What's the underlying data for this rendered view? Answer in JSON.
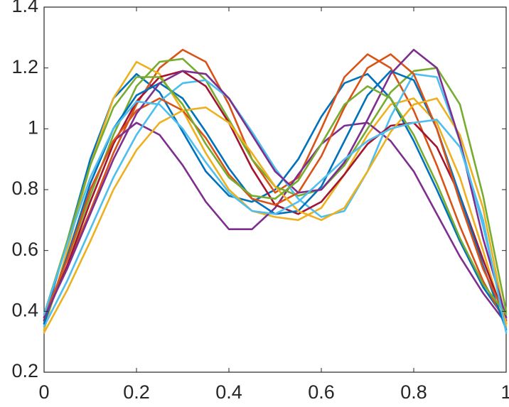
{
  "chart_data": {
    "type": "line",
    "x": [
      0,
      0.05,
      0.1,
      0.15,
      0.2,
      0.25,
      0.3,
      0.35,
      0.4,
      0.45,
      0.5,
      0.55,
      0.6,
      0.65,
      0.7,
      0.75,
      0.8,
      0.85,
      0.9,
      0.95,
      1
    ],
    "xlim": [
      0,
      1
    ],
    "xticks": [
      0,
      0.2,
      0.4,
      0.6,
      0.8,
      1
    ],
    "ylim": [
      0.2,
      1.4
    ],
    "yticks": [
      0.2,
      0.4,
      0.6,
      0.8,
      1,
      1.2,
      1.4
    ],
    "series": [
      {
        "color": "#0072BD",
        "values": [
          0.37,
          0.63,
          0.9,
          1.1,
          1.18,
          1.12,
          0.99,
          0.86,
          0.78,
          0.76,
          0.8,
          0.9,
          1.04,
          1.15,
          1.18,
          1.1,
          0.96,
          0.8,
          0.63,
          0.48,
          0.37
        ]
      },
      {
        "color": "#D95319",
        "values": [
          0.38,
          0.55,
          0.73,
          0.92,
          1.08,
          1.2,
          1.26,
          1.22,
          1.08,
          0.9,
          0.79,
          0.84,
          1.0,
          1.17,
          1.245,
          1.2,
          1.06,
          0.88,
          0.68,
          0.5,
          0.36
        ]
      },
      {
        "color": "#EDB120",
        "values": [
          0.34,
          0.6,
          0.88,
          1.1,
          1.22,
          1.18,
          1.06,
          0.92,
          0.8,
          0.73,
          0.71,
          0.7,
          0.74,
          0.85,
          0.98,
          1.08,
          1.1,
          1.02,
          0.84,
          0.6,
          0.35
        ]
      },
      {
        "color": "#7E2F8E",
        "values": [
          0.36,
          0.58,
          0.8,
          0.96,
          1.02,
          0.98,
          0.88,
          0.76,
          0.67,
          0.67,
          0.74,
          0.85,
          0.95,
          1.01,
          1.02,
          0.96,
          0.86,
          0.72,
          0.58,
          0.46,
          0.36
        ]
      },
      {
        "color": "#77AC30",
        "values": [
          0.38,
          0.57,
          0.78,
          0.98,
          1.14,
          1.22,
          1.23,
          1.16,
          1.03,
          0.9,
          0.81,
          0.78,
          0.8,
          0.88,
          1.0,
          1.12,
          1.19,
          1.2,
          1.08,
          0.78,
          0.4
        ]
      },
      {
        "color": "#4DBEEE",
        "values": [
          0.35,
          0.5,
          0.67,
          0.84,
          0.98,
          1.09,
          1.15,
          1.16,
          1.1,
          0.99,
          0.87,
          0.77,
          0.71,
          0.73,
          0.86,
          1.04,
          1.18,
          1.17,
          0.96,
          0.68,
          0.36
        ]
      },
      {
        "color": "#A2142F",
        "values": [
          0.37,
          0.55,
          0.76,
          0.95,
          1.09,
          1.17,
          1.19,
          1.14,
          1.02,
          0.87,
          0.75,
          0.72,
          0.76,
          0.85,
          0.95,
          1.01,
          1.02,
          0.94,
          0.78,
          0.57,
          0.37
        ]
      },
      {
        "color": "#0072BD",
        "values": [
          0.36,
          0.58,
          0.82,
          1.0,
          1.11,
          1.15,
          1.1,
          0.99,
          0.87,
          0.77,
          0.72,
          0.73,
          0.81,
          0.96,
          1.11,
          1.19,
          1.16,
          1.0,
          0.78,
          0.55,
          0.34
        ]
      },
      {
        "color": "#D95319",
        "values": [
          0.38,
          0.57,
          0.8,
          0.96,
          1.06,
          1.1,
          1.06,
          0.97,
          0.85,
          0.77,
          0.75,
          0.79,
          0.91,
          1.07,
          1.2,
          1.245,
          1.18,
          1.0,
          0.76,
          0.54,
          0.38
        ]
      },
      {
        "color": "#EDB120",
        "values": [
          0.33,
          0.47,
          0.63,
          0.8,
          0.93,
          1.02,
          1.06,
          1.07,
          1.02,
          0.92,
          0.81,
          0.73,
          0.7,
          0.74,
          0.86,
          0.99,
          1.08,
          1.1,
          0.98,
          0.74,
          0.36
        ]
      },
      {
        "color": "#7E2F8E",
        "values": [
          0.38,
          0.54,
          0.72,
          0.9,
          1.05,
          1.15,
          1.19,
          1.18,
          1.1,
          0.98,
          0.86,
          0.79,
          0.8,
          0.89,
          1.03,
          1.18,
          1.26,
          1.2,
          0.96,
          0.64,
          0.38
        ]
      },
      {
        "color": "#77AC30",
        "values": [
          0.39,
          0.63,
          0.88,
          1.07,
          1.17,
          1.17,
          1.08,
          0.95,
          0.84,
          0.78,
          0.77,
          0.83,
          0.95,
          1.08,
          1.14,
          1.1,
          0.98,
          0.82,
          0.64,
          0.49,
          0.39
        ]
      },
      {
        "color": "#4DBEEE",
        "values": [
          0.39,
          0.62,
          0.84,
          1.0,
          1.09,
          1.08,
          1.0,
          0.89,
          0.79,
          0.73,
          0.72,
          0.76,
          0.83,
          0.9,
          0.96,
          1.0,
          1.02,
          1.03,
          0.94,
          0.7,
          0.33
        ]
      }
    ]
  }
}
